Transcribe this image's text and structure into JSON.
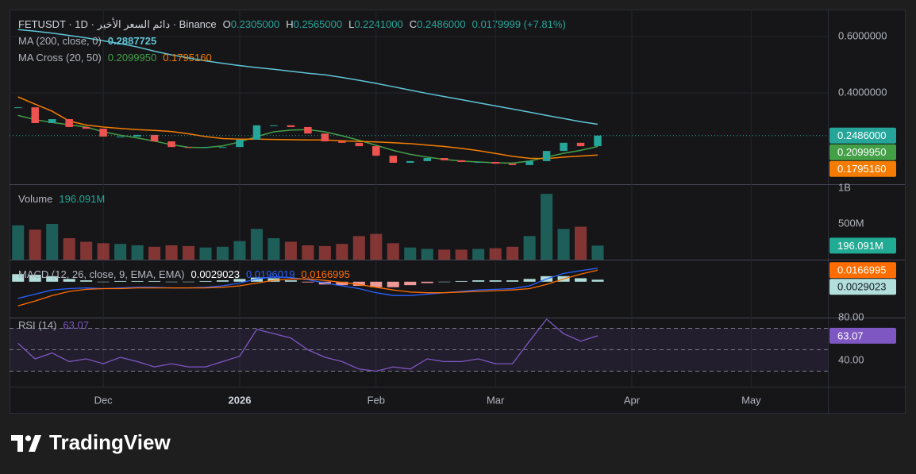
{
  "header": {
    "title": "FETUSDT · 1D · دائم السعر الأخير · Binance",
    "ohlc": [
      {
        "key": "O",
        "value": "0.2305000"
      },
      {
        "key": "H",
        "value": "0.2565000"
      },
      {
        "key": "L",
        "value": "0.2241000"
      },
      {
        "key": "C",
        "value": "0.2486000"
      }
    ],
    "change": "0.0179999 (+7.81%)"
  },
  "chart_data": [
    {
      "type": "candlestick",
      "categories": [
        null,
        null,
        null,
        null,
        null,
        "Dec",
        null,
        null,
        null,
        null,
        null,
        null,
        null,
        "2026",
        null,
        null,
        null,
        null,
        null,
        null,
        null,
        "Feb",
        null,
        null,
        null,
        null,
        null,
        null,
        "Mar",
        null,
        null,
        null,
        null,
        null,
        null,
        null,
        "Apr",
        null,
        null,
        null,
        null,
        null,
        null,
        "May",
        null,
        null,
        null,
        null
      ],
      "values": [
        0.349,
        0.293,
        0.307,
        0.279,
        0.273,
        0.245,
        0.245,
        0.251,
        0.228,
        0.208,
        0.206,
        0.208,
        0.208,
        0.234,
        0.285,
        0.285,
        0.279,
        0.256,
        0.228,
        0.223,
        0.211,
        0.177,
        0.152,
        0.158,
        0.169,
        0.161,
        0.155,
        0.155,
        0.149,
        0.144,
        0.158,
        0.194,
        0.223,
        0.211,
        0.2486,
        null,
        null,
        null,
        null,
        null,
        null,
        null,
        null,
        null,
        null,
        null,
        null,
        null
      ],
      "value_labels": [
        null,
        null,
        null,
        null,
        null,
        null,
        null,
        null,
        null,
        null,
        null,
        null,
        null,
        null,
        null,
        null,
        null,
        null,
        null,
        null,
        null,
        null,
        null,
        null,
        null,
        null,
        null,
        null,
        null,
        null,
        null,
        null,
        null,
        null,
        "0.2486000",
        null,
        null,
        null,
        null,
        null,
        null,
        null,
        null,
        null,
        null,
        null,
        null,
        null
      ],
      "up_color": "#26a69a",
      "down_color": "#ef5350",
      "ylim": [
        0.076,
        0.696
      ],
      "yticks": [
        {
          "value": 0.4,
          "label": "0.4000000"
        },
        {
          "value": 0.6,
          "label": "0.6000000"
        }
      ],
      "grid": true,
      "indicators": [
        {
          "name": "MA (200, close, 0)",
          "series": [
            {
              "color": "#5fc4d4",
              "values": [
                0.625,
                0.619,
                0.612,
                0.604,
                0.595,
                0.585,
                0.575,
                0.563,
                0.548,
                0.535,
                0.524,
                0.514,
                0.505,
                0.497,
                0.49,
                0.484,
                0.477,
                0.47,
                0.464,
                0.455,
                0.445,
                0.434,
                0.422,
                0.41,
                0.398,
                0.387,
                0.376,
                0.365,
                0.354,
                0.343,
                0.332,
                0.32,
                0.309,
                0.298,
                0.2887725,
                null,
                null,
                null,
                null,
                null,
                null,
                null,
                null,
                null,
                null,
                null,
                null,
                null
              ]
            }
          ]
        },
        {
          "name": "MA Cross (20, 50)",
          "series": [
            {
              "color": "#43a047",
              "values": [
                0.32,
                0.305,
                0.295,
                0.287,
                0.279,
                0.262,
                0.25,
                0.24,
                0.229,
                0.216,
                0.207,
                0.206,
                0.212,
                0.226,
                0.245,
                0.262,
                0.268,
                0.27,
                0.262,
                0.248,
                0.232,
                0.214,
                0.196,
                0.182,
                0.172,
                0.164,
                0.158,
                0.155,
                0.152,
                0.151,
                0.158,
                0.172,
                0.186,
                0.196,
                0.209995,
                null,
                null,
                null,
                null,
                null,
                null,
                null,
                null,
                null,
                null,
                null,
                null,
                null
              ],
              "value_labels": [
                null,
                null,
                null,
                null,
                null,
                null,
                null,
                null,
                null,
                null,
                null,
                null,
                null,
                null,
                null,
                null,
                null,
                null,
                null,
                null,
                null,
                null,
                null,
                null,
                null,
                null,
                null,
                null,
                null,
                null,
                null,
                null,
                null,
                null,
                "0.2099950",
                null,
                null,
                null,
                null,
                null,
                null,
                null,
                null,
                null,
                null,
                null,
                null,
                null
              ]
            },
            {
              "color": "#f57c00",
              "values": [
                0.386,
                0.36,
                0.335,
                0.3,
                0.286,
                0.279,
                0.274,
                0.27,
                0.267,
                0.263,
                0.255,
                0.245,
                0.238,
                0.236,
                0.236,
                0.235,
                0.234,
                0.233,
                0.233,
                0.23,
                0.228,
                0.226,
                0.223,
                0.22,
                0.215,
                0.21,
                0.203,
                0.195,
                0.185,
                0.175,
                0.168,
                0.167,
                0.172,
                0.176,
                0.179516,
                null,
                null,
                null,
                null,
                null,
                null,
                null,
                null,
                null,
                null,
                null,
                null,
                null
              ],
              "value_labels": [
                null,
                null,
                null,
                null,
                null,
                null,
                null,
                null,
                null,
                null,
                null,
                null,
                null,
                null,
                null,
                null,
                null,
                null,
                null,
                null,
                null,
                null,
                null,
                null,
                null,
                null,
                null,
                null,
                null,
                null,
                null,
                null,
                null,
                null,
                "0.1795160",
                null,
                null,
                null,
                null,
                null,
                null,
                null,
                null,
                null,
                null,
                null,
                null,
                null
              ]
            }
          ]
        }
      ]
    },
    {
      "type": "bar",
      "name": "Volume",
      "color": "#22ab94",
      "values": [
        480000000,
        420000000,
        500000000,
        300000000,
        250000000,
        230000000,
        220000000,
        200000000,
        180000000,
        200000000,
        190000000,
        170000000,
        180000000,
        260000000,
        430000000,
        300000000,
        250000000,
        200000000,
        190000000,
        220000000,
        330000000,
        360000000,
        230000000,
        170000000,
        150000000,
        140000000,
        140000000,
        150000000,
        160000000,
        180000000,
        330000000,
        920000000,
        430000000,
        460000000,
        196091000,
        null,
        null,
        null,
        null,
        null,
        null,
        null,
        null,
        null,
        null,
        null,
        null,
        null
      ],
      "value_labels": [
        null,
        null,
        null,
        null,
        null,
        null,
        null,
        null,
        null,
        null,
        null,
        null,
        null,
        null,
        null,
        null,
        null,
        null,
        null,
        null,
        null,
        null,
        null,
        null,
        null,
        null,
        null,
        null,
        null,
        null,
        null,
        null,
        null,
        null,
        "196.091M",
        null,
        null,
        null,
        null,
        null,
        null,
        null,
        null,
        null,
        null,
        null,
        null,
        null
      ],
      "up_color": "#26a69a",
      "down_color": "#ef5350",
      "ylim": [
        0,
        1056000000
      ],
      "yticks": [
        {
          "value": 500000000,
          "label": "500M"
        },
        {
          "value": 1000000000,
          "label": "1B"
        }
      ]
    },
    {
      "type": "macd",
      "name": "MACD (12, 26, close, 9, EMA, EMA)",
      "ylim": [
        -0.052,
        0.032
      ],
      "series": [
        {
          "color": "#2962ff",
          "values": [
            -0.024,
            -0.018,
            -0.012,
            -0.01,
            -0.009,
            -0.01,
            -0.009,
            -0.008,
            -0.008,
            -0.009,
            -0.009,
            -0.008,
            -0.006,
            -0.002,
            0.004,
            0.007,
            0.006,
            0.003,
            -0.002,
            -0.006,
            -0.01,
            -0.016,
            -0.02,
            -0.02,
            -0.018,
            -0.016,
            -0.014,
            -0.012,
            -0.011,
            -0.01,
            -0.006,
            0.004,
            0.012,
            0.016,
            0.0196019,
            null,
            null,
            null,
            null,
            null,
            null,
            null,
            null,
            null,
            null,
            null,
            null,
            null
          ]
        },
        {
          "color": "#ff6d00",
          "values": [
            -0.035,
            -0.028,
            -0.02,
            -0.014,
            -0.011,
            -0.01,
            -0.01,
            -0.009,
            -0.009,
            -0.009,
            -0.009,
            -0.009,
            -0.008,
            -0.006,
            -0.002,
            0.002,
            0.004,
            0.004,
            0.002,
            -0.001,
            -0.004,
            -0.008,
            -0.012,
            -0.015,
            -0.016,
            -0.016,
            -0.015,
            -0.014,
            -0.013,
            -0.012,
            -0.01,
            -0.004,
            0.004,
            0.011,
            0.0166995,
            null,
            null,
            null,
            null,
            null,
            null,
            null,
            null,
            null,
            null,
            null,
            null,
            null
          ]
        }
      ],
      "histogram": {
        "up_color": "#b2dfdb",
        "down_color": "#ef9a9a",
        "values": [
          0.011,
          0.01,
          0.008,
          0.004,
          0.002,
          0,
          0.001,
          0.001,
          0.001,
          0,
          0,
          0.001,
          0.002,
          0.004,
          0.006,
          0.005,
          0.002,
          -0.001,
          -0.004,
          -0.005,
          -0.006,
          -0.008,
          -0.008,
          -0.005,
          -0.002,
          0,
          0.001,
          0.002,
          0.002,
          0.002,
          0.004,
          0.008,
          0.008,
          0.005,
          0.0029023,
          null,
          null,
          null,
          null,
          null,
          null,
          null,
          null,
          null,
          null,
          null,
          null,
          null
        ]
      }
    },
    {
      "type": "line",
      "name": "RSI (14)",
      "color": "#7e57c2",
      "values": [
        56,
        41.5,
        47,
        39,
        41.5,
        37,
        43,
        39,
        34,
        37,
        34,
        34,
        39,
        44,
        69,
        65,
        61,
        50,
        43,
        39,
        32,
        30,
        34,
        32,
        41.5,
        39,
        39,
        41.5,
        37,
        37,
        58,
        78.5,
        65,
        58,
        63.07,
        null,
        null,
        null,
        null,
        null,
        null,
        null,
        null,
        null,
        null,
        null,
        null,
        null
      ],
      "ylim": [
        15.6,
        80
      ],
      "yticks": [
        {
          "value": 40,
          "label": "40.00"
        },
        {
          "value": 80,
          "label": "80.00"
        }
      ],
      "levels": [
        30,
        50,
        70
      ]
    }
  ],
  "brand": "TradingView"
}
